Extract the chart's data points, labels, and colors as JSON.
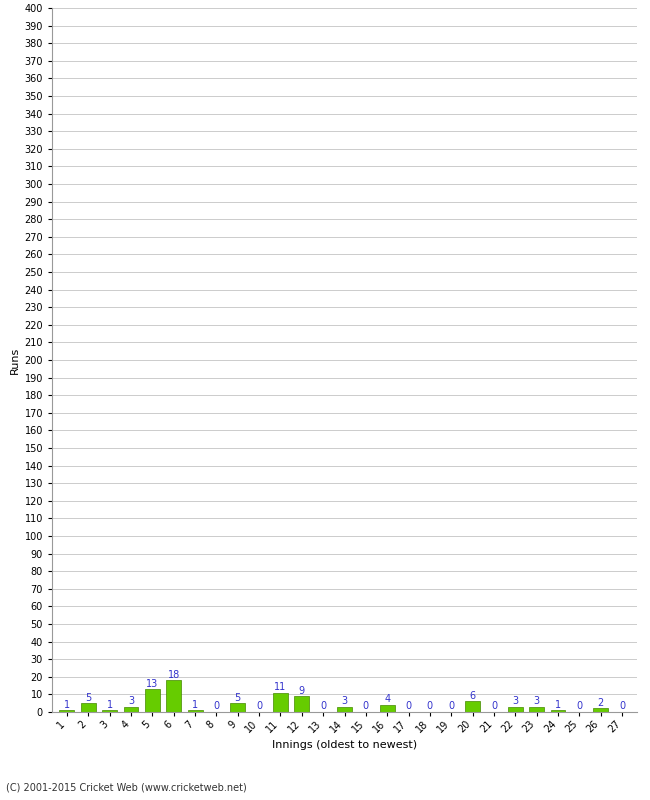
{
  "values": [
    1,
    5,
    1,
    3,
    13,
    18,
    1,
    0,
    5,
    0,
    11,
    9,
    0,
    3,
    0,
    4,
    0,
    0,
    0,
    6,
    0,
    3,
    3,
    1,
    0,
    2,
    0
  ],
  "innings": [
    1,
    2,
    3,
    4,
    5,
    6,
    7,
    8,
    9,
    10,
    11,
    12,
    13,
    14,
    15,
    16,
    17,
    18,
    19,
    20,
    21,
    22,
    23,
    24,
    25,
    26,
    27
  ],
  "bar_color": "#66cc00",
  "bar_edge_color": "#448800",
  "label_color": "#3333cc",
  "xlabel": "Innings (oldest to newest)",
  "ylabel": "Runs",
  "ylim": [
    0,
    400
  ],
  "yticks": [
    0,
    10,
    20,
    30,
    40,
    50,
    60,
    70,
    80,
    90,
    100,
    110,
    120,
    130,
    140,
    150,
    160,
    170,
    180,
    190,
    200,
    210,
    220,
    230,
    240,
    250,
    260,
    270,
    280,
    290,
    300,
    310,
    320,
    330,
    340,
    350,
    360,
    370,
    380,
    390,
    400
  ],
  "footer": "(C) 2001-2015 Cricket Web (www.cricketweb.net)",
  "background_color": "#ffffff",
  "grid_color": "#cccccc",
  "label_fontsize": 7,
  "axis_fontsize": 7,
  "xlabel_fontsize": 8
}
